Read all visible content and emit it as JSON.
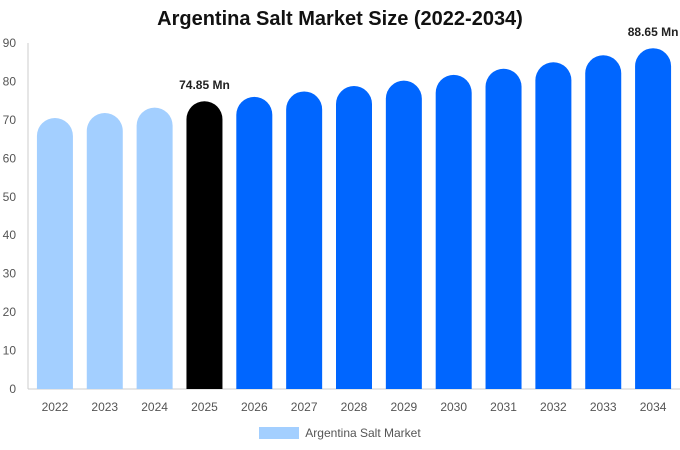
{
  "chart_data": {
    "type": "bar",
    "title": "Argentina Salt Market Size (2022-2034)",
    "categories": [
      "2022",
      "2023",
      "2024",
      "2025",
      "2026",
      "2027",
      "2028",
      "2029",
      "2030",
      "2031",
      "2032",
      "2033",
      "2034"
    ],
    "series": [
      {
        "name": "Argentina Salt Market",
        "values": [
          70.5,
          71.8,
          73.2,
          74.85,
          76.0,
          77.4,
          78.8,
          80.2,
          81.7,
          83.3,
          85.0,
          86.8,
          88.65
        ]
      }
    ],
    "bar_colors": [
      "#a3cfff",
      "#a3cfff",
      "#a3cfff",
      "#000000",
      "#0066ff",
      "#0066ff",
      "#0066ff",
      "#0066ff",
      "#0066ff",
      "#0066ff",
      "#0066ff",
      "#0066ff",
      "#0066ff"
    ],
    "data_labels": [
      {
        "index": 3,
        "text": "74.85 Mn"
      },
      {
        "index": 12,
        "text": "88.65 Mn"
      }
    ],
    "yticks": [
      0,
      10,
      20,
      30,
      40,
      50,
      60,
      70,
      80,
      90
    ],
    "ylim": [
      0,
      90
    ],
    "xlabel": "",
    "ylabel": "",
    "grid": false,
    "legend": {
      "position": "bottom-center",
      "label": "Argentina Salt Market",
      "color": "#a3cfff"
    }
  }
}
